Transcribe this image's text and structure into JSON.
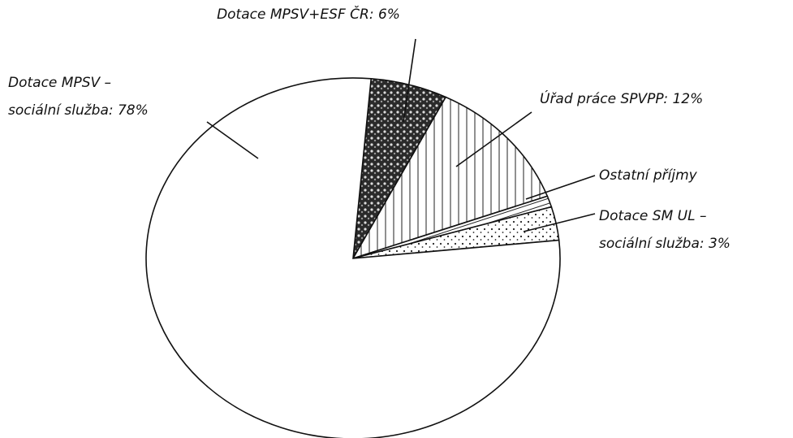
{
  "chart_data": {
    "type": "pie",
    "categories": [
      [
        "Dotace MPSV+ESF ČR: 6%"
      ],
      [
        "Úřad práce SPVPP: 12%"
      ],
      [
        "Ostatní příjmy"
      ],
      [
        "Dotace SM UL –",
        "sociální služba: 3%"
      ],
      [
        "Dotace MPSV –",
        "sociální služba: 78%"
      ]
    ],
    "values": [
      6,
      12,
      1,
      3,
      78
    ]
  }
}
